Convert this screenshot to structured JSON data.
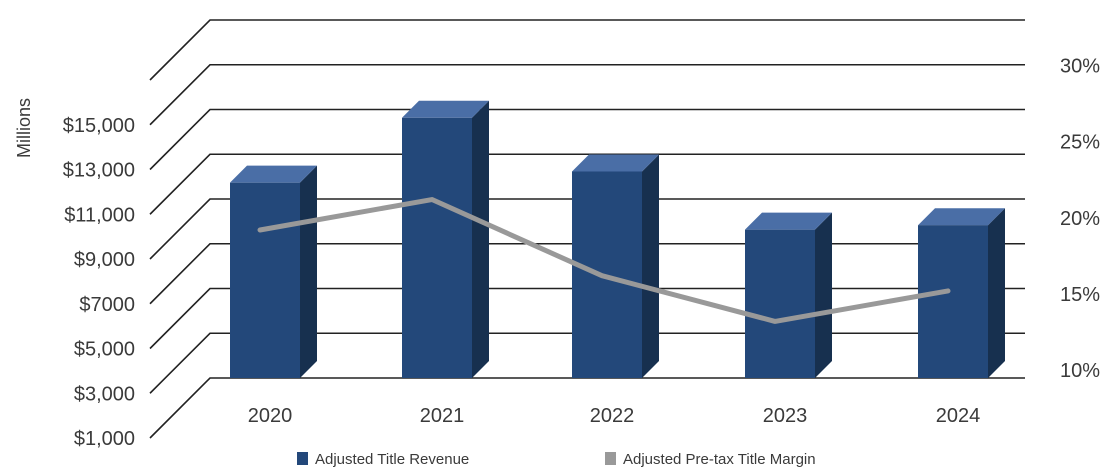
{
  "chart_data": {
    "type": "bar",
    "categories": [
      "2020",
      "2021",
      "2022",
      "2023",
      "2024"
    ],
    "series": [
      {
        "name": "Adjusted Title Revenue",
        "values": [
          10400,
          13300,
          10900,
          8300,
          8500
        ],
        "axis": "left",
        "kind": "bar",
        "color": "#23487a"
      },
      {
        "name": "Adjusted Pre-tax Title Margin",
        "values": [
          19.2,
          21.2,
          16.2,
          13.2,
          15.2
        ],
        "axis": "right",
        "kind": "line",
        "color": "#999999"
      }
    ],
    "ylabel": "Millions",
    "y_ticks": [
      "$1,000",
      "$3,000",
      "$5,000",
      "$7000",
      "$9,000",
      "$11,000",
      "$13,000",
      "$15,000"
    ],
    "y_tick_values": [
      1000,
      3000,
      5000,
      7000,
      9000,
      11000,
      13000,
      15000
    ],
    "y2_ticks": [
      "10%",
      "15%",
      "20%",
      "25%",
      "30%"
    ],
    "y2_tick_values": [
      10,
      15,
      20,
      25,
      30
    ],
    "ylim": [
      1000,
      17000
    ],
    "y2lim": [
      8.5,
      32
    ],
    "grid": true,
    "legend": "bottom-center",
    "colors": {
      "bar_front": "#23487a",
      "bar_top": "#4a6ea6",
      "bar_side": "#17304f",
      "line": "#999999",
      "grid": "#222222"
    }
  }
}
